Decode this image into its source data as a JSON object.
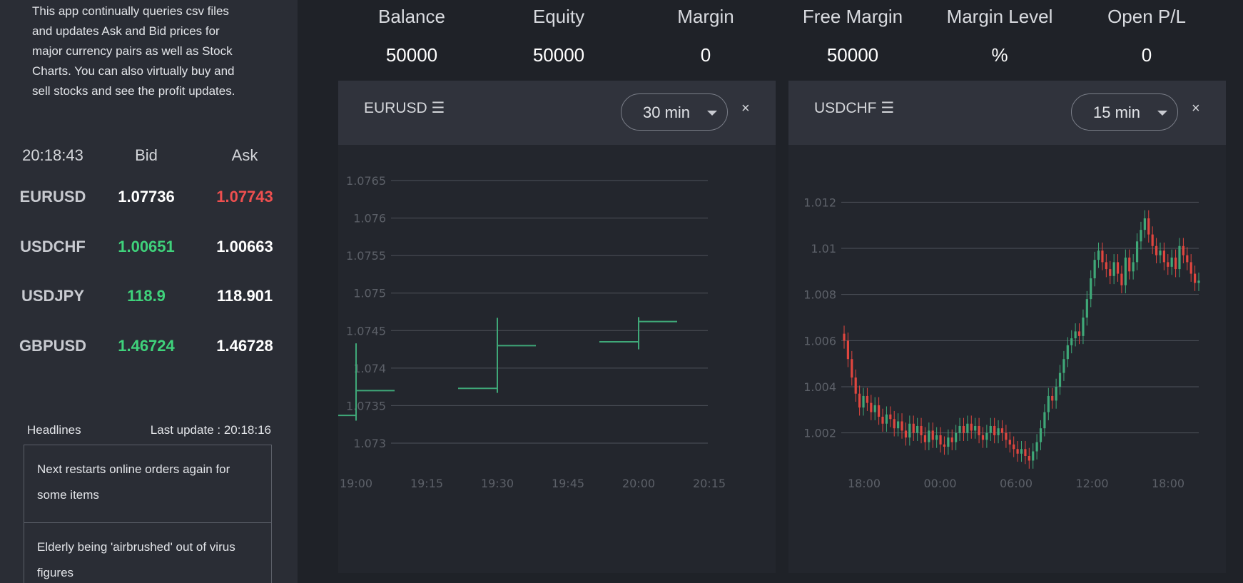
{
  "intro": {
    "lines": [
      "This app continually queries csv files",
      "and updates Ask and Bid prices for",
      "major currency pairs as well as Stock",
      "Charts. You can also virtually buy and",
      "sell stocks and see the profit updates."
    ]
  },
  "prices": {
    "time": "20:18:43",
    "bid_label": "Bid",
    "ask_label": "Ask",
    "rows": [
      {
        "symbol": "EURUSD",
        "bid": "1.07736",
        "ask": "1.07743"
      },
      {
        "symbol": "USDCHF",
        "bid": "1.00651",
        "ask": "1.00663"
      },
      {
        "symbol": "USDJPY",
        "bid": "118.9",
        "ask": "118.901"
      },
      {
        "symbol": "GBPUSD",
        "bid": "1.46724",
        "ask": "1.46728"
      }
    ]
  },
  "headlines": {
    "title": "Headlines",
    "last_update": "Last update : 20:18:16",
    "items": [
      "Next restarts online orders again for some items",
      "Elderly being 'airbrushed' out of virus figures"
    ]
  },
  "stats": [
    {
      "label": "Balance",
      "value": "50000"
    },
    {
      "label": "Equity",
      "value": "50000"
    },
    {
      "label": "Margin",
      "value": "0"
    },
    {
      "label": "Free Margin",
      "value": "50000"
    },
    {
      "label": "Margin Level",
      "value": "%"
    },
    {
      "label": "Open P/L",
      "value": "0"
    }
  ],
  "colors": {
    "up": "#3fa878",
    "down": "#e0463f",
    "bid_up": "#3fd27b",
    "ask_down": "#ef4f4f"
  },
  "chart_data": [
    {
      "type": "candlestick",
      "title": "EURUSD ☰",
      "timeframe": "30 min",
      "close_label": "×",
      "x_ticks": [
        "19:00",
        "19:15",
        "19:30",
        "19:45",
        "20:00",
        "20:15"
      ],
      "y_ticks": [
        "1.0765",
        "1.076",
        "1.0755",
        "1.075",
        "1.0745",
        "1.074",
        "1.0735",
        "1.073"
      ],
      "ylim": [
        1.073,
        1.0765
      ],
      "xlim": [
        "19:00",
        "20:15"
      ],
      "candles": [
        {
          "t": "19:00",
          "open": 1.07337,
          "high": 1.07433,
          "low": 1.0733,
          "close": 1.0737
        },
        {
          "t": "19:30",
          "open": 1.07373,
          "high": 1.07467,
          "low": 1.07367,
          "close": 1.0743
        },
        {
          "t": "20:00",
          "open": 1.07435,
          "high": 1.07468,
          "low": 1.07425,
          "close": 1.07462
        }
      ]
    },
    {
      "type": "candlestick",
      "title": "USDCHF ☰",
      "timeframe": "15 min",
      "close_label": "×",
      "x_ticks": [
        "18:00",
        "00:00",
        "06:00",
        "12:00",
        "18:00"
      ],
      "y_ticks": [
        "1.012",
        "1.01",
        "1.008",
        "1.006",
        "1.004",
        "1.002"
      ],
      "ylim": [
        1.001,
        1.013
      ],
      "closes": [
        1.006,
        1.0052,
        1.0044,
        1.0037,
        1.0031,
        1.0036,
        1.0033,
        1.0029,
        1.0032,
        1.0027,
        1.0024,
        1.0028,
        1.0026,
        1.0022,
        1.0025,
        1.0021,
        1.0018,
        1.0024,
        1.002,
        1.0023,
        1.0019,
        1.0016,
        1.0021,
        1.0017,
        1.0019,
        1.0015,
        1.0014,
        1.0018,
        1.0016,
        1.002,
        1.0023,
        1.002,
        1.0024,
        1.0021,
        1.0023,
        1.0019,
        1.0017,
        1.002,
        1.0023,
        1.0019,
        1.0022,
        1.002,
        1.0017,
        1.0015,
        1.0013,
        1.0011,
        1.0013,
        1.001,
        1.0008,
        1.0012,
        1.0016,
        1.0022,
        1.0029,
        1.0036,
        1.0034,
        1.004,
        1.0046,
        1.0052,
        1.0058,
        1.0061,
        1.0064,
        1.0062,
        1.007,
        1.0078,
        1.0087,
        1.0095,
        1.0099,
        1.0094,
        1.0091,
        1.0088,
        1.0094,
        1.0089,
        1.0084,
        1.0096,
        1.009,
        1.0094,
        1.0103,
        1.0108,
        1.0113,
        1.0106,
        1.0101,
        1.0097,
        1.0099,
        1.0094,
        1.0092,
        1.0096,
        1.0091,
        1.0101,
        1.0097,
        1.0094,
        1.0089,
        1.0085,
        1.0086
      ]
    }
  ]
}
